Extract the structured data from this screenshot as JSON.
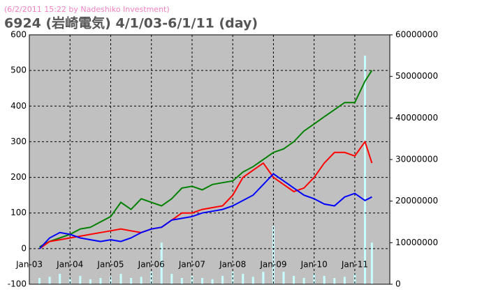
{
  "chart_data": {
    "type": "line",
    "subtitle": "(6/2/2011 15:22 by Nadeshiko Investment)",
    "title": "6924 (岩崎電気)  4/1/03-6/1/11 (day)",
    "x": [
      2003.25,
      2003.5,
      2003.75,
      2004.0,
      2004.25,
      2004.5,
      2004.75,
      2005.0,
      2005.25,
      2005.5,
      2005.75,
      2006.0,
      2006.25,
      2006.5,
      2006.75,
      2007.0,
      2007.25,
      2007.5,
      2007.75,
      2008.0,
      2008.25,
      2008.5,
      2008.75,
      2009.0,
      2009.25,
      2009.5,
      2009.75,
      2010.0,
      2010.25,
      2010.5,
      2010.75,
      2011.0,
      2011.25,
      2011.42
    ],
    "series": [
      {
        "color": "#008000",
        "values": [
          5,
          20,
          30,
          40,
          55,
          60,
          75,
          90,
          130,
          110,
          140,
          130,
          120,
          140,
          170,
          175,
          165,
          180,
          185,
          190,
          215,
          230,
          250,
          270,
          280,
          300,
          330,
          350,
          370,
          390,
          410,
          410,
          470,
          500
        ]
      },
      {
        "color": "#ff0000",
        "values": [
          0,
          20,
          25,
          30,
          35,
          40,
          45,
          50,
          55,
          50,
          45,
          55,
          60,
          80,
          100,
          100,
          110,
          115,
          120,
          150,
          200,
          220,
          240,
          200,
          180,
          160,
          170,
          200,
          240,
          270,
          270,
          260,
          300,
          240
        ]
      },
      {
        "color": "#0000ff",
        "values": [
          0,
          30,
          45,
          40,
          30,
          25,
          20,
          25,
          20,
          30,
          45,
          55,
          60,
          80,
          85,
          90,
          100,
          105,
          110,
          120,
          135,
          150,
          180,
          210,
          190,
          170,
          150,
          140,
          125,
          120,
          145,
          155,
          135,
          145
        ]
      },
      {
        "color": "#c8ffff",
        "axis": "y2",
        "type": "bar",
        "values": [
          1500000,
          1800000,
          2500000,
          1500000,
          2000000,
          1200000,
          1500000,
          1800000,
          2500000,
          1500000,
          1800000,
          3000000,
          10000000,
          2500000,
          1500000,
          2000000,
          1500000,
          1200000,
          2000000,
          3000000,
          2500000,
          1800000,
          3000000,
          14000000,
          3000000,
          2000000,
          1500000,
          2500000,
          2000000,
          1500000,
          1800000,
          2500000,
          55000000,
          10000000
        ]
      }
    ],
    "xlim": [
      2003,
      2011.86
    ],
    "xticks": [
      {
        "value": 2003,
        "label": "Jan-03"
      },
      {
        "value": 2004,
        "label": "Jan-04"
      },
      {
        "value": 2005,
        "label": "Jan-05"
      },
      {
        "value": 2006,
        "label": "Jan-06"
      },
      {
        "value": 2007,
        "label": "Jan-07"
      },
      {
        "value": 2008,
        "label": "Jan-08"
      },
      {
        "value": 2009,
        "label": "Jan-09"
      },
      {
        "value": 2010,
        "label": "Jan-10"
      },
      {
        "value": 2011,
        "label": "Jan-11"
      }
    ],
    "ylim": [
      -100,
      600
    ],
    "yticks": [
      -100,
      0,
      100,
      200,
      300,
      400,
      500,
      600
    ],
    "y2lim": [
      0,
      60000000
    ],
    "y2ticks": [
      0,
      10000000,
      20000000,
      30000000,
      40000000,
      50000000,
      60000000
    ],
    "grid": true,
    "background": "#c0c0c0"
  }
}
